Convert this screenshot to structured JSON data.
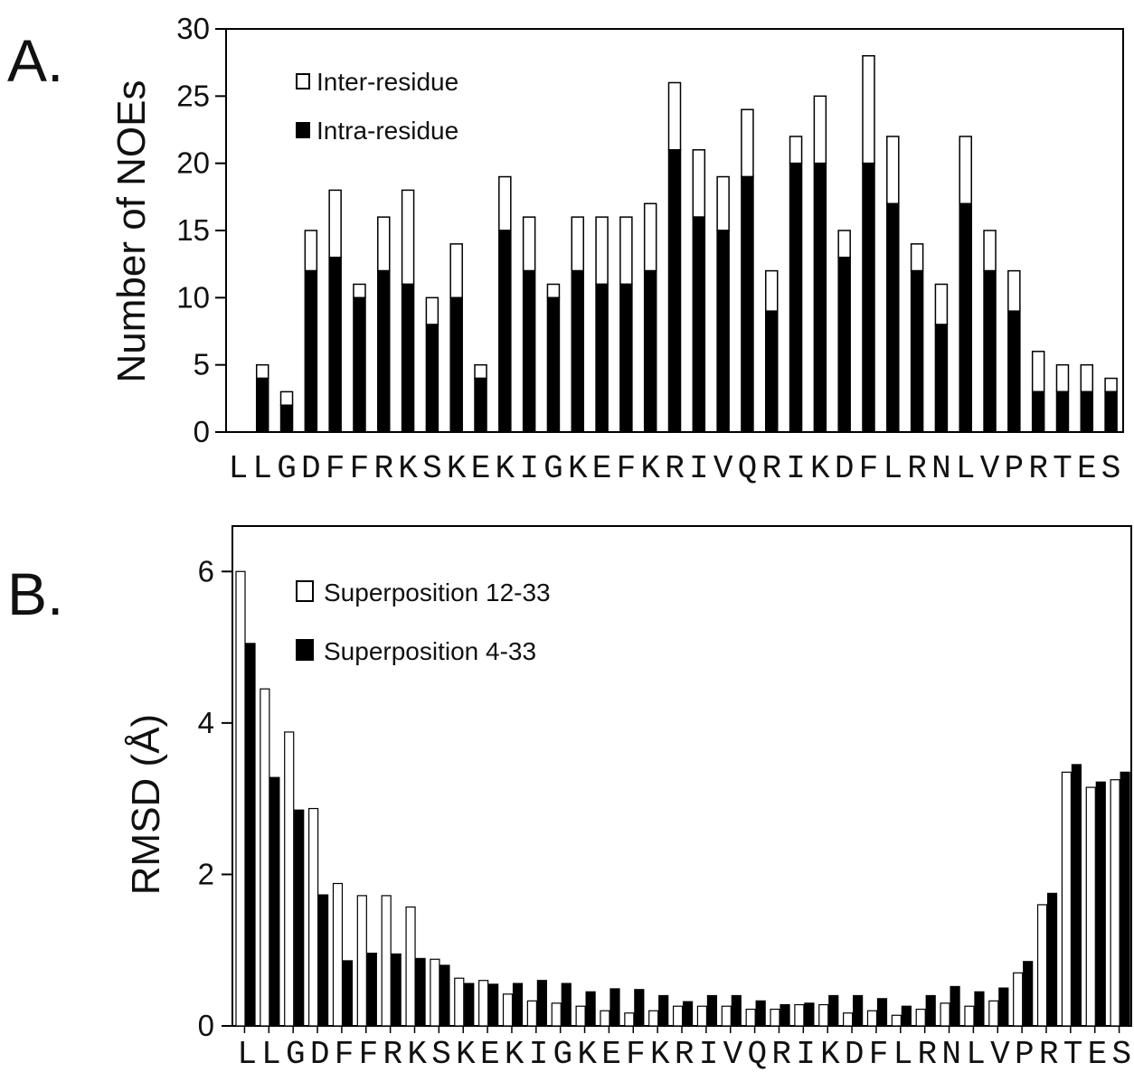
{
  "chart_data": [
    {
      "type": "bar",
      "panel_label": "A.",
      "stacked": true,
      "categories": [
        "L",
        "L",
        "G",
        "D",
        "F",
        "F",
        "R",
        "K",
        "S",
        "K",
        "E",
        "K",
        "I",
        "G",
        "K",
        "E",
        "F",
        "K",
        "R",
        "I",
        "V",
        "Q",
        "R",
        "I",
        "K",
        "D",
        "F",
        "L",
        "R",
        "N",
        "L",
        "V",
        "P",
        "R",
        "T",
        "E",
        "S"
      ],
      "series": [
        {
          "name": "Intra-residue",
          "color": "#000000",
          "values": [
            0,
            4,
            2,
            12,
            13,
            10,
            12,
            11,
            8,
            10,
            4,
            15,
            12,
            10,
            12,
            11,
            11,
            12,
            21,
            16,
            15,
            19,
            9,
            20,
            20,
            13,
            20,
            17,
            12,
            8,
            17,
            12,
            9,
            3,
            3,
            3,
            3
          ]
        },
        {
          "name": "Inter-residue",
          "color": "#ffffff",
          "values": [
            0,
            1,
            1,
            3,
            5,
            1,
            4,
            7,
            2,
            4,
            1,
            4,
            4,
            1,
            4,
            5,
            5,
            5,
            5,
            5,
            4,
            5,
            3,
            2,
            5,
            2,
            8,
            5,
            2,
            3,
            5,
            3,
            3,
            3,
            2,
            2,
            1
          ]
        }
      ],
      "ylabel": "Number of NOEs",
      "yticks": [
        0,
        5,
        10,
        15,
        20,
        25,
        30
      ],
      "ylim": [
        0,
        30
      ],
      "legend": "top-left"
    },
    {
      "type": "bar",
      "panel_label": "B.",
      "stacked": false,
      "categories": [
        "L",
        "L",
        "G",
        "D",
        "F",
        "F",
        "R",
        "K",
        "S",
        "K",
        "E",
        "K",
        "I",
        "G",
        "K",
        "E",
        "F",
        "K",
        "R",
        "I",
        "V",
        "Q",
        "R",
        "I",
        "K",
        "D",
        "F",
        "L",
        "R",
        "N",
        "L",
        "V",
        "P",
        "R",
        "T",
        "E",
        "S"
      ],
      "series": [
        {
          "name": "Superposition 12-33",
          "color": "#ffffff",
          "values": [
            6.0,
            4.45,
            3.88,
            2.87,
            1.88,
            1.72,
            1.72,
            1.57,
            0.88,
            0.63,
            0.6,
            0.42,
            0.33,
            0.3,
            0.26,
            0.2,
            0.17,
            0.2,
            0.26,
            0.26,
            0.26,
            0.22,
            0.22,
            0.28,
            0.28,
            0.17,
            0.2,
            0.14,
            0.22,
            0.3,
            0.26,
            0.33,
            0.7,
            1.6,
            3.35,
            3.15,
            3.25
          ]
        },
        {
          "name": "Superposition 4-33",
          "color": "#000000",
          "values": [
            5.05,
            3.28,
            2.85,
            1.73,
            0.86,
            0.96,
            0.95,
            0.89,
            0.8,
            0.56,
            0.55,
            0.56,
            0.6,
            0.56,
            0.45,
            0.49,
            0.48,
            0.4,
            0.32,
            0.4,
            0.4,
            0.33,
            0.28,
            0.3,
            0.4,
            0.4,
            0.36,
            0.26,
            0.4,
            0.52,
            0.45,
            0.5,
            0.85,
            1.75,
            3.45,
            3.22,
            3.35
          ]
        }
      ],
      "ylabel": "RMSD (Å)",
      "yticks": [
        0,
        2,
        4,
        6
      ],
      "ylim": [
        0,
        6.6
      ],
      "legend": "top-left"
    }
  ]
}
